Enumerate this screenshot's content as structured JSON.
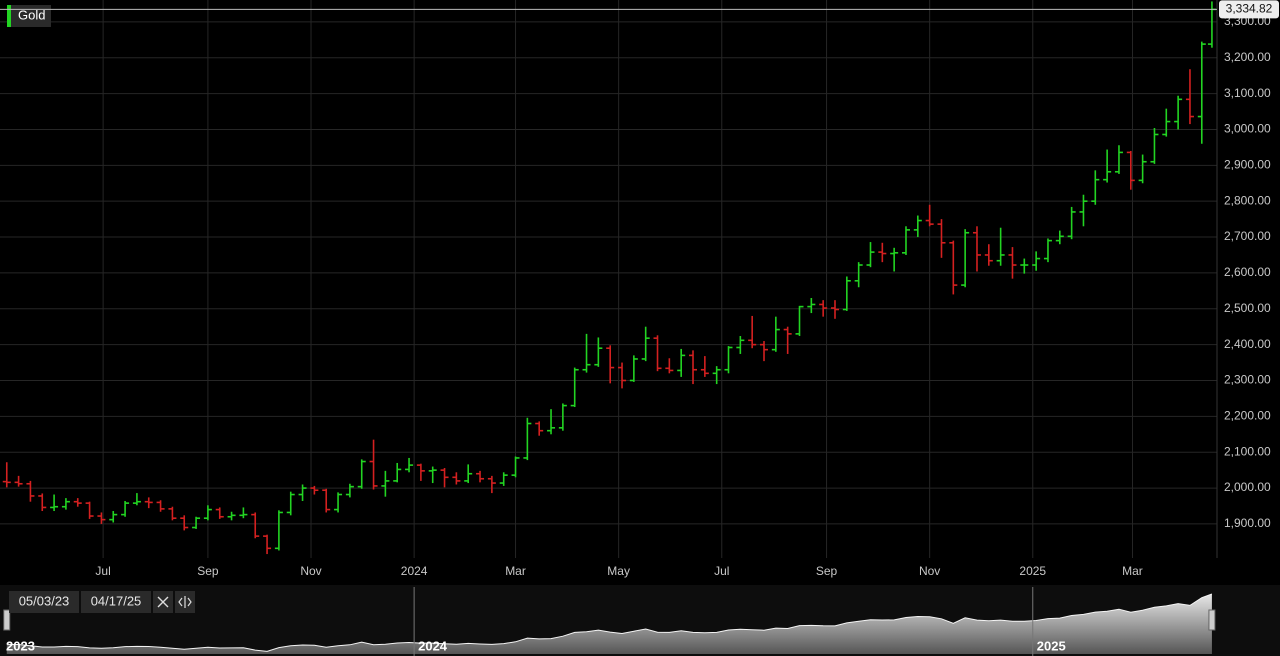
{
  "chart_data": {
    "type": "ohlc",
    "grid": true,
    "x": [
      "05/05/23",
      "05/12/23",
      "05/19/23",
      "05/26/23",
      "06/02/23",
      "06/09/23",
      "06/16/23",
      "06/23/23",
      "06/30/23",
      "07/07/23",
      "07/14/23",
      "07/21/23",
      "07/28/23",
      "08/04/23",
      "08/11/23",
      "08/18/23",
      "08/25/23",
      "09/01/23",
      "09/08/23",
      "09/15/23",
      "09/22/23",
      "09/29/23",
      "10/06/23",
      "10/13/23",
      "10/20/23",
      "10/27/23",
      "11/03/23",
      "11/10/23",
      "11/17/23",
      "11/24/23",
      "12/01/23",
      "12/08/23",
      "12/15/23",
      "12/22/23",
      "12/29/23",
      "01/05/24",
      "01/12/24",
      "01/19/24",
      "01/26/24",
      "02/02/24",
      "02/09/24",
      "02/16/24",
      "02/23/24",
      "03/01/24",
      "03/08/24",
      "03/15/24",
      "03/22/24",
      "03/29/24",
      "04/05/24",
      "04/12/24",
      "04/19/24",
      "04/26/24",
      "05/03/24",
      "05/10/24",
      "05/17/24",
      "05/24/24",
      "05/31/24",
      "06/07/24",
      "06/14/24",
      "06/21/24",
      "06/28/24",
      "07/05/24",
      "07/12/24",
      "07/19/24",
      "07/26/24",
      "08/02/24",
      "08/09/24",
      "08/16/24",
      "08/23/24",
      "08/30/24",
      "09/06/24",
      "09/13/24",
      "09/20/24",
      "09/27/24",
      "10/04/24",
      "10/11/24",
      "10/18/24",
      "10/25/24",
      "11/01/24",
      "11/08/24",
      "11/15/24",
      "11/22/24",
      "11/29/24",
      "12/06/24",
      "12/13/24",
      "12/20/24",
      "12/27/24",
      "01/03/25",
      "01/10/25",
      "01/17/25",
      "01/24/25",
      "01/31/25",
      "02/07/25",
      "02/14/25",
      "02/21/25",
      "02/28/25",
      "03/07/25",
      "03/14/25",
      "03/21/25",
      "03/28/25",
      "04/04/25",
      "04/11/25",
      "04/17/25"
    ],
    "series": [
      {
        "name": "Gold",
        "up_color": "#22d422",
        "down_color": "#d42020",
        "open": [
          2018,
          2016,
          2012,
          1978,
          1946,
          1948,
          1962,
          1958,
          1922,
          1912,
          1926,
          1958,
          1962,
          1960,
          1942,
          1916,
          1890,
          1916,
          1940,
          1920,
          1924,
          1926,
          1866,
          1832,
          1932,
          1982,
          2000,
          1994,
          1940,
          1982,
          2004,
          2074,
          2006,
          2020,
          2052,
          2064,
          2048,
          2050,
          2030,
          2020,
          2040,
          2026,
          2014,
          2036,
          2084,
          2180,
          2160,
          2168,
          2230,
          2330,
          2344,
          2390,
          2336,
          2300,
          2360,
          2418,
          2334,
          2328,
          2370,
          2330,
          2320,
          2330,
          2392,
          2412,
          2400,
          2386,
          2442,
          2430,
          2506,
          2512,
          2502,
          2498,
          2578,
          2622,
          2658,
          2654,
          2656,
          2720,
          2746,
          2736,
          2684,
          2566,
          2712,
          2650,
          2634,
          2650,
          2622,
          2622,
          2640,
          2690,
          2702,
          2770,
          2800,
          2860,
          2882,
          2936,
          2858,
          2910,
          2986,
          3022,
          3084,
          3036,
          3238
        ],
        "high": [
          2072,
          2034,
          2020,
          1985,
          1982,
          1972,
          1972,
          1962,
          1932,
          1936,
          1964,
          1986,
          1974,
          1966,
          1948,
          1924,
          1920,
          1952,
          1946,
          1934,
          1946,
          1932,
          1870,
          1938,
          1990,
          2010,
          2006,
          1998,
          1988,
          2012,
          2080,
          2135,
          2048,
          2070,
          2084,
          2068,
          2060,
          2056,
          2044,
          2066,
          2048,
          2034,
          2044,
          2088,
          2196,
          2186,
          2220,
          2236,
          2336,
          2430,
          2420,
          2398,
          2350,
          2370,
          2450,
          2426,
          2362,
          2388,
          2384,
          2368,
          2340,
          2396,
          2424,
          2480,
          2410,
          2478,
          2450,
          2508,
          2530,
          2524,
          2524,
          2590,
          2630,
          2686,
          2684,
          2670,
          2730,
          2760,
          2790,
          2750,
          2690,
          2722,
          2730,
          2680,
          2726,
          2672,
          2640,
          2660,
          2696,
          2718,
          2784,
          2818,
          2886,
          2944,
          2956,
          2940,
          2930,
          3004,
          3058,
          3094,
          3168,
          3245,
          3357
        ],
        "low": [
          2002,
          2004,
          1962,
          1936,
          1936,
          1940,
          1948,
          1914,
          1900,
          1904,
          1920,
          1952,
          1944,
          1934,
          1910,
          1882,
          1886,
          1910,
          1914,
          1910,
          1916,
          1860,
          1816,
          1826,
          1924,
          1964,
          1982,
          1932,
          1932,
          1974,
          1998,
          1996,
          1976,
          2016,
          2044,
          2020,
          2014,
          2002,
          2010,
          2014,
          2016,
          1986,
          2006,
          2030,
          2078,
          2146,
          2150,
          2160,
          2226,
          2322,
          2338,
          2292,
          2278,
          2296,
          2354,
          2326,
          2320,
          2310,
          2290,
          2310,
          2290,
          2320,
          2374,
          2390,
          2354,
          2380,
          2374,
          2424,
          2488,
          2478,
          2472,
          2494,
          2560,
          2616,
          2630,
          2604,
          2650,
          2700,
          2730,
          2642,
          2540,
          2560,
          2604,
          2620,
          2620,
          2584,
          2598,
          2606,
          2630,
          2680,
          2694,
          2730,
          2790,
          2852,
          2876,
          2832,
          2850,
          2904,
          2980,
          3000,
          3015,
          2960,
          3228
        ],
        "close": [
          2016,
          2012,
          1978,
          1946,
          1948,
          1962,
          1958,
          1922,
          1912,
          1926,
          1958,
          1962,
          1960,
          1942,
          1916,
          1890,
          1916,
          1940,
          1920,
          1924,
          1926,
          1866,
          1832,
          1932,
          1982,
          2000,
          1994,
          1940,
          1982,
          2004,
          2074,
          2006,
          2020,
          2052,
          2064,
          2048,
          2050,
          2030,
          2020,
          2040,
          2026,
          2014,
          2036,
          2084,
          2180,
          2160,
          2168,
          2230,
          2330,
          2344,
          2390,
          2336,
          2300,
          2360,
          2418,
          2334,
          2328,
          2370,
          2330,
          2320,
          2330,
          2392,
          2412,
          2400,
          2386,
          2442,
          2430,
          2506,
          2512,
          2502,
          2498,
          2578,
          2622,
          2658,
          2654,
          2656,
          2720,
          2746,
          2736,
          2684,
          2566,
          2712,
          2650,
          2634,
          2650,
          2622,
          2622,
          2640,
          2690,
          2702,
          2770,
          2800,
          2860,
          2882,
          2936,
          2858,
          2910,
          2986,
          3022,
          3084,
          3036,
          3238,
          3334.82
        ],
        "last_value_label": "3,334.82"
      }
    ],
    "xlim": [
      "05/01/23",
      "04/20/25"
    ],
    "xticks": [
      {
        "value": "07/01/23",
        "label": "Jul"
      },
      {
        "value": "09/01/23",
        "label": "Sep"
      },
      {
        "value": "11/01/23",
        "label": "Nov"
      },
      {
        "value": "01/01/24",
        "label": "2024"
      },
      {
        "value": "03/01/24",
        "label": "Mar"
      },
      {
        "value": "05/01/24",
        "label": "May"
      },
      {
        "value": "07/01/24",
        "label": "Jul"
      },
      {
        "value": "09/01/24",
        "label": "Sep"
      },
      {
        "value": "11/01/24",
        "label": "Nov"
      },
      {
        "value": "01/01/25",
        "label": "2025"
      },
      {
        "value": "03/01/25",
        "label": "Mar"
      }
    ],
    "ylim": [
      1805,
      3361
    ],
    "yticks": [
      {
        "value": 1900,
        "label": "1,900.00"
      },
      {
        "value": 2000,
        "label": "2,000.00"
      },
      {
        "value": 2100,
        "label": "2,100.00"
      },
      {
        "value": 2200,
        "label": "2,200.00"
      },
      {
        "value": 2300,
        "label": "2,300.00"
      },
      {
        "value": 2400,
        "label": "2,400.00"
      },
      {
        "value": 2500,
        "label": "2,500.00"
      },
      {
        "value": 2600,
        "label": "2,600.00"
      },
      {
        "value": 2700,
        "label": "2,700.00"
      },
      {
        "value": 2800,
        "label": "2,800.00"
      },
      {
        "value": 2900,
        "label": "2,900.00"
      },
      {
        "value": 3000,
        "label": "3,000.00"
      },
      {
        "value": 3100,
        "label": "3,100.00"
      },
      {
        "value": 3200,
        "label": "3,200.00"
      },
      {
        "value": 3300,
        "label": "3,300.00"
      }
    ],
    "navigator": {
      "start_label": "05/03/23",
      "end_label": "04/17/25",
      "years": [
        {
          "value": "01/01/23",
          "label": "2023"
        },
        {
          "value": "01/01/24",
          "label": "2024"
        },
        {
          "value": "01/01/25",
          "label": "2025"
        }
      ]
    }
  }
}
